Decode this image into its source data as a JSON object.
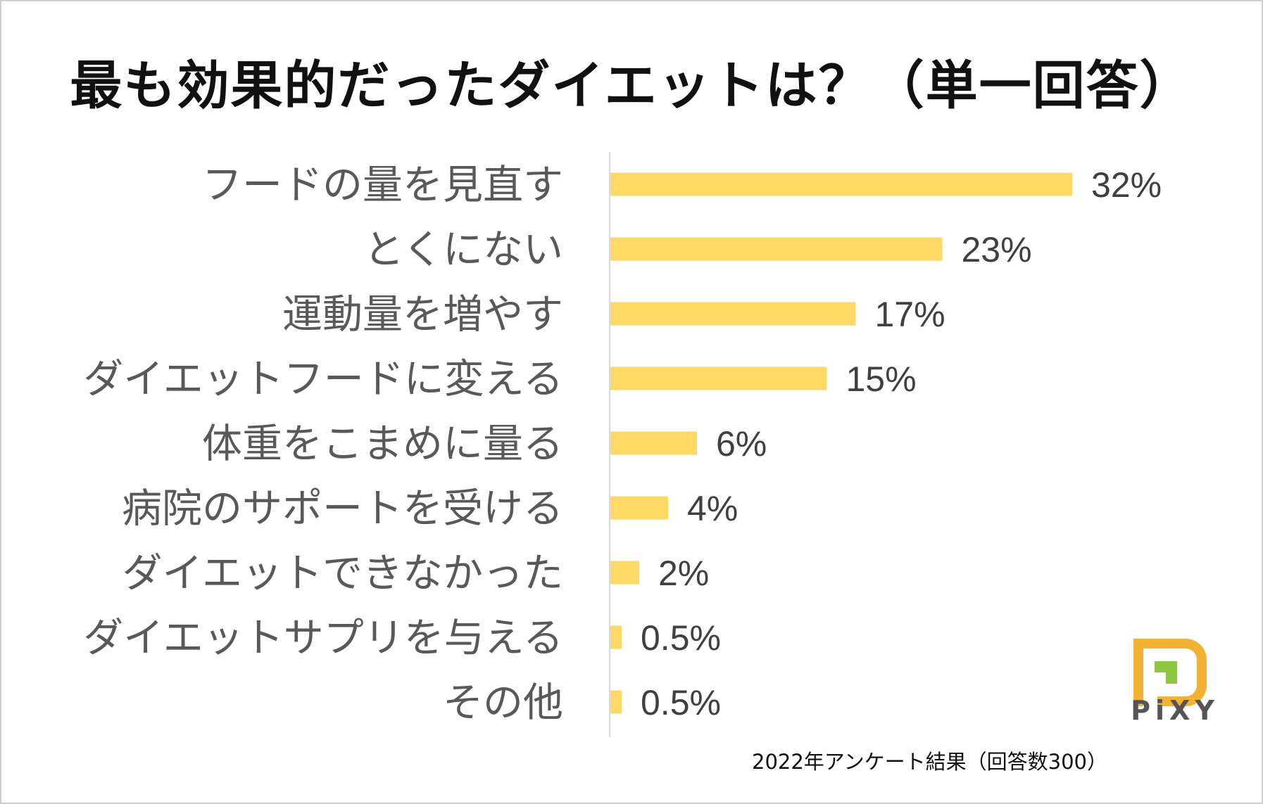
{
  "chart_data": {
    "type": "bar",
    "orientation": "horizontal",
    "title": "最も効果的だったダイエットは？（単一回答）",
    "categories": [
      "フードの量を見直す",
      "とくにない",
      "運動量を増やす",
      "ダイエットフードに変える",
      "体重をこまめに量る",
      "病院のサポートを受ける",
      "ダイエットできなかった",
      "ダイエットサプリを与える",
      "その他"
    ],
    "values": [
      32,
      23,
      17,
      15,
      6,
      4,
      2,
      0.5,
      0.5
    ],
    "value_labels": [
      "32%",
      "23%",
      "17%",
      "15%",
      "6%",
      "4%",
      "2%",
      "0.5%",
      "0.5%"
    ],
    "xlim": [
      0,
      35
    ],
    "bar_color": "#FFD966",
    "axis_color": "#D9D9D9",
    "grid": false
  },
  "footnote": "2022年アンケート結果（回答数300）",
  "logo": {
    "text": "PiXY",
    "colors": {
      "primary": "#F2B233",
      "accent": "#8DC63F",
      "text": "#555555"
    }
  }
}
